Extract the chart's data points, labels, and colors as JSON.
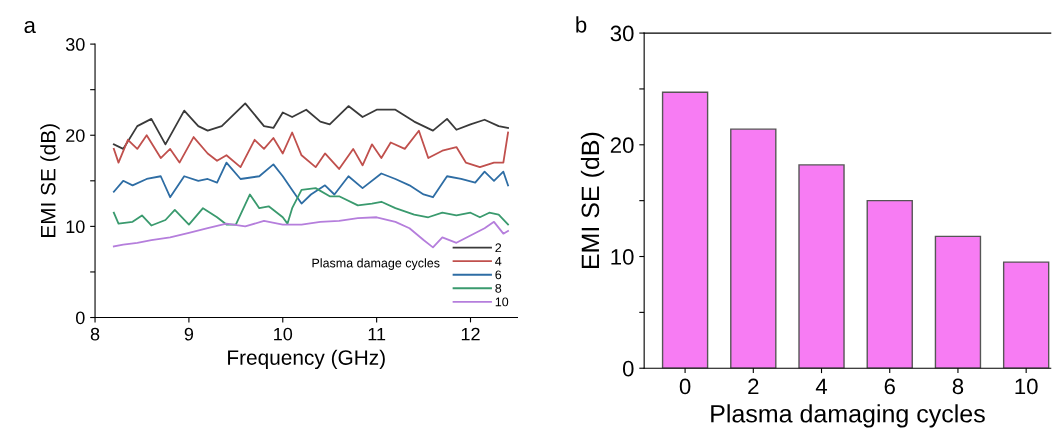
{
  "chart_data": [
    {
      "type": "line",
      "xlabel": "Frequency (GHz)",
      "ylabel": "EMI SE (dB)",
      "legend_title": "Plasma damage cycles",
      "legend": "bottom right",
      "grid": false,
      "xlim": [
        8,
        12.5
      ],
      "xticks": [
        8,
        9,
        10,
        11,
        12
      ],
      "ylim": [
        0,
        30
      ],
      "yticks": [
        0,
        {
          "value": 5,
          "label": null
        },
        10,
        {
          "value": 15,
          "label": null
        },
        20,
        {
          "value": 25,
          "label": null
        },
        30
      ],
      "annotations": [
        "a"
      ],
      "series": [
        {
          "name": "2",
          "color": "#3a3a3a",
          "x": [
            8.2,
            8.3,
            8.45,
            8.6,
            8.75,
            8.95,
            9.1,
            9.2,
            9.35,
            9.6,
            9.8,
            9.9,
            10.0,
            10.1,
            10.25,
            10.4,
            10.5,
            10.7,
            10.85,
            11.0,
            11.2,
            11.4,
            11.6,
            11.75,
            11.85,
            12.0,
            12.15,
            12.3,
            12.4
          ],
          "values": [
            19,
            18.5,
            21,
            21.8,
            19,
            22.7,
            21,
            20.5,
            21,
            23.5,
            21,
            20.8,
            22.5,
            22,
            22.8,
            21.5,
            21.2,
            23.2,
            22,
            22.8,
            22.8,
            21.5,
            20.5,
            21.8,
            20.6,
            21.2,
            21.7,
            21,
            20.8
          ]
        },
        {
          "name": "4",
          "color": "#c0504d",
          "x": [
            8.2,
            8.25,
            8.35,
            8.45,
            8.55,
            8.7,
            8.8,
            8.9,
            9.05,
            9.2,
            9.3,
            9.4,
            9.55,
            9.7,
            9.8,
            9.9,
            10.0,
            10.1,
            10.2,
            10.35,
            10.45,
            10.6,
            10.75,
            10.85,
            10.95,
            11.05,
            11.15,
            11.3,
            11.45,
            11.55,
            11.7,
            11.85,
            11.95,
            12.1,
            12.25,
            12.35,
            12.4
          ],
          "values": [
            18.5,
            17,
            19.5,
            18.5,
            20,
            17.5,
            18.5,
            17,
            19.8,
            18,
            17.2,
            17.8,
            16.5,
            19.5,
            18.5,
            19.7,
            18,
            20.3,
            17.8,
            16.5,
            18,
            16.3,
            18.5,
            16.7,
            19,
            17.5,
            19.2,
            18.5,
            20.5,
            17.5,
            18.3,
            18.7,
            17,
            16.5,
            17,
            17,
            20.3
          ]
        },
        {
          "name": "6",
          "color": "#2e6da4",
          "x": [
            8.2,
            8.3,
            8.4,
            8.55,
            8.7,
            8.8,
            8.95,
            9.1,
            9.2,
            9.3,
            9.4,
            9.55,
            9.75,
            9.9,
            10.0,
            10.1,
            10.2,
            10.3,
            10.45,
            10.55,
            10.7,
            10.85,
            11.05,
            11.2,
            11.35,
            11.5,
            11.6,
            11.75,
            11.9,
            12.05,
            12.15,
            12.25,
            12.35,
            12.4
          ],
          "values": [
            13.8,
            15,
            14.5,
            15.2,
            15.5,
            13.2,
            15.5,
            15,
            15.2,
            14.8,
            17,
            15.2,
            15.5,
            16.8,
            15.5,
            14,
            12.5,
            13.5,
            14.5,
            13.5,
            15.5,
            14.2,
            15.8,
            15.2,
            14.5,
            13.5,
            13.2,
            15.5,
            15.2,
            14.8,
            16,
            15,
            16,
            14.5
          ]
        },
        {
          "name": "8",
          "color": "#3a9a6e",
          "x": [
            8.2,
            8.25,
            8.4,
            8.5,
            8.6,
            8.75,
            8.85,
            9.0,
            9.15,
            9.3,
            9.4,
            9.5,
            9.65,
            9.75,
            9.85,
            10.0,
            10.05,
            10.1,
            10.2,
            10.35,
            10.5,
            10.6,
            10.8,
            10.95,
            11.05,
            11.2,
            11.4,
            11.55,
            11.7,
            11.85,
            12.0,
            12.1,
            12.2,
            12.3,
            12.4
          ],
          "values": [
            11.5,
            10.3,
            10.5,
            11.2,
            10.1,
            10.7,
            11.8,
            10.2,
            12,
            11,
            10.2,
            10.2,
            13.5,
            12,
            12.2,
            11,
            10.3,
            12,
            14,
            14.2,
            13.3,
            13.3,
            12.3,
            12.5,
            12.7,
            12,
            11.3,
            11,
            11.5,
            11.2,
            11.5,
            11,
            11.5,
            11.3,
            10.2
          ]
        },
        {
          "name": "10",
          "color": "#b57edc",
          "x": [
            8.2,
            8.3,
            8.45,
            8.6,
            8.8,
            9.0,
            9.2,
            9.4,
            9.6,
            9.8,
            10.0,
            10.2,
            10.4,
            10.6,
            10.8,
            11.0,
            11.2,
            11.35,
            11.5,
            11.6,
            11.7,
            11.85,
            12.0,
            12.15,
            12.25,
            12.35,
            12.4
          ],
          "values": [
            7.8,
            8,
            8.2,
            8.5,
            8.8,
            9.3,
            9.8,
            10.3,
            10,
            10.6,
            10.2,
            10.2,
            10.5,
            10.6,
            10.9,
            11,
            10.5,
            9.8,
            8.5,
            7.7,
            8.8,
            8.2,
            9,
            9.8,
            10.5,
            9.2,
            9.5
          ]
        }
      ]
    },
    {
      "type": "bar",
      "xlabel": "Plasma damaging cycles",
      "ylabel": "EMI SE (dB)",
      "grid": false,
      "categories": [
        "0",
        "2",
        "4",
        "6",
        "8",
        "10"
      ],
      "values": [
        24.7,
        21.4,
        18.2,
        15.0,
        11.8,
        9.5
      ],
      "color": "#f77cf3",
      "ylim": [
        0,
        30
      ],
      "yticks": [
        0,
        {
          "value": 5,
          "label": null
        },
        10,
        {
          "value": 15,
          "label": null
        },
        20,
        {
          "value": 25,
          "label": null
        },
        30
      ],
      "annotations": [
        "b"
      ]
    }
  ]
}
